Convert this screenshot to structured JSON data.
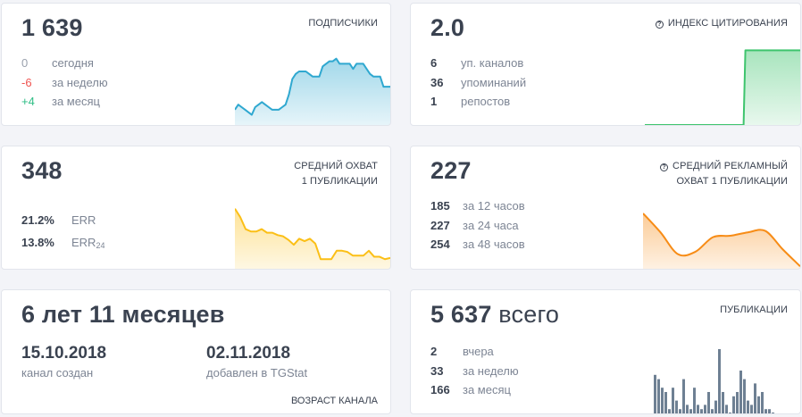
{
  "subscribers": {
    "value": "1 639",
    "label": "ПОДПИСЧИКИ",
    "rows": [
      {
        "value": "0",
        "text": "сегодня"
      },
      {
        "value": "-6",
        "text": "за неделю"
      },
      {
        "value": "+4",
        "text": "за месяц"
      }
    ]
  },
  "citation": {
    "value": "2.0",
    "label": "ИНДЕКС ЦИТИРОВАНИЯ",
    "help_icon": "question-circle-icon",
    "rows": [
      {
        "value": "6",
        "text": "уп. каналов"
      },
      {
        "value": "36",
        "text": "упоминаний"
      },
      {
        "value": "1",
        "text": "репостов"
      }
    ]
  },
  "reach": {
    "value": "348",
    "label_line1": "СРЕДНИЙ ОХВАТ",
    "label_line2": "1 ПУБЛИКАЦИИ",
    "rows": [
      {
        "value": "21.2%",
        "text": "ERR",
        "sub": ""
      },
      {
        "value": "13.8%",
        "text": "ERR",
        "sub": "24"
      }
    ]
  },
  "ad_reach": {
    "value": "227",
    "label_line1": "СРЕДНИЙ РЕКЛАМНЫЙ",
    "label_line2": "ОХВАТ 1 ПУБЛИКАЦИИ",
    "help_icon": "question-circle-icon",
    "rows": [
      {
        "value": "185",
        "text": "за 12 часов"
      },
      {
        "value": "227",
        "text": "за 24 часа"
      },
      {
        "value": "254",
        "text": "за 48 часов"
      }
    ]
  },
  "age": {
    "value": "6 лет 11 месяцев",
    "created_date": "15.10.2018",
    "created_label": "канал создан",
    "added_date": "02.11.2018",
    "added_label": "добавлен в TGStat",
    "label": "ВОЗРАСТ КАНАЛА"
  },
  "posts": {
    "value": "5 637",
    "value_suffix": "всего",
    "label": "ПУБЛИКАЦИИ",
    "rows": [
      {
        "value": "2",
        "text": "вчера"
      },
      {
        "value": "33",
        "text": "за неделю"
      },
      {
        "value": "166",
        "text": "за месяц"
      }
    ]
  },
  "colors": {
    "subscribers_line": "#2fa8d0",
    "citation_line": "#3ec46d",
    "reach_line": "#fbbf16",
    "ad_reach_line": "#f78c16",
    "posts_bars": "#6e8093",
    "negative": "#ef5350",
    "positive": "#2ebd85"
  },
  "chart_data": [
    {
      "type": "area",
      "title": "Подписчики",
      "values": [
        26,
        28,
        27,
        26,
        25,
        24,
        27,
        28,
        29,
        28,
        27,
        26,
        26,
        26,
        27,
        28,
        32,
        38,
        40,
        41,
        41,
        41,
        40,
        39,
        39,
        39,
        43,
        44,
        45,
        45,
        46,
        44,
        44,
        44,
        44,
        42,
        44,
        44,
        44,
        42,
        40,
        39,
        39,
        39,
        35,
        35,
        35
      ],
      "ylim": [
        20,
        48
      ]
    },
    {
      "type": "area",
      "title": "Индекс цитирования",
      "values": [
        0,
        0,
        0,
        0,
        0,
        0,
        0,
        0,
        0,
        0,
        0,
        0,
        0,
        0,
        0,
        0,
        0,
        0,
        0,
        0,
        0,
        0,
        2,
        2,
        2,
        2,
        2,
        2,
        2,
        2,
        2,
        2,
        2,
        2,
        2
      ],
      "ylim": [
        0,
        2.2
      ]
    },
    {
      "type": "area",
      "title": "Средний охват 1 публикации",
      "values": [
        100,
        93,
        83,
        81,
        81,
        83,
        80,
        80,
        78,
        77,
        74,
        70,
        75,
        73,
        75,
        71,
        58,
        58,
        58,
        65,
        65,
        64,
        61,
        61,
        61,
        65,
        60,
        60,
        58,
        59
      ],
      "ylim": [
        50,
        102
      ]
    },
    {
      "type": "area",
      "title": "Средний рекламный охват 1 публикации",
      "values": [
        254,
        215,
        170,
        175,
        205,
        208,
        215,
        218,
        180,
        145
      ],
      "ylim": [
        140,
        265
      ]
    },
    {
      "type": "bar",
      "title": "Публикации",
      "values": [
        9,
        8,
        6,
        5,
        1,
        6,
        3,
        1,
        8,
        2,
        1,
        6,
        2,
        1,
        2,
        5,
        1,
        3,
        15,
        5,
        2,
        0,
        4,
        5,
        10,
        8,
        3,
        2,
        7,
        4,
        5,
        1,
        1,
        0
      ],
      "ylim": [
        0,
        15
      ]
    }
  ]
}
